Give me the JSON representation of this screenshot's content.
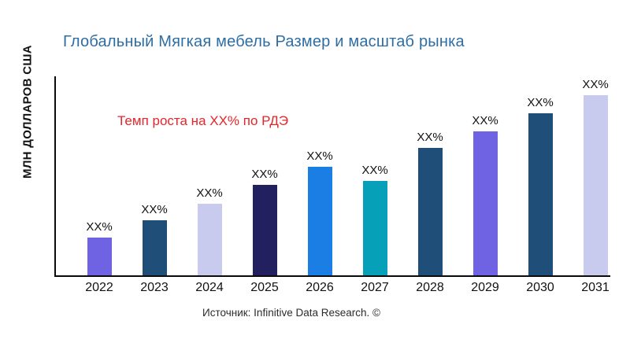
{
  "title": "Глобальный Мягкая мебель Размер и масштаб рынка",
  "annotation": "Темп роста на XX% по РДЭ",
  "y_axis_label": "МЛН ДОЛЛАРОВ США",
  "source": "Источник: Infinitive Data Research. ©",
  "colors": {
    "title": "#2e6da4",
    "annotation": "#e5252a",
    "axis": "#0a0a0a",
    "label_text": "#111111"
  },
  "chart_data": {
    "type": "bar",
    "title": "Глобальный Мягкая мебель Размер и масштаб рынка",
    "xlabel": "",
    "ylabel": "МЛН ДОЛЛАРОВ США",
    "categories": [
      "2022",
      "2023",
      "2024",
      "2025",
      "2026",
      "2027",
      "2028",
      "2029",
      "2030",
      "2031"
    ],
    "bar_labels": [
      "XX%",
      "XX%",
      "XX%",
      "XX%",
      "XX%",
      "XX%",
      "XX%",
      "XX%",
      "XX%",
      "XX%"
    ],
    "values_pct_of_plot_height": [
      19.0,
      27.7,
      36.0,
      45.5,
      54.5,
      47.4,
      64.0,
      72.3,
      81.4,
      90.5
    ],
    "bar_colors": [
      "#6f63e3",
      "#1f4e79",
      "#c9cbee",
      "#232060",
      "#1b7ee5",
      "#06a1b8",
      "#1f4e79",
      "#6f63e3",
      "#1f4e79",
      "#c9cbee"
    ],
    "value_axis_ticks": [],
    "grid": false,
    "legend": false,
    "annotation": "Темп роста на XX% по РДЭ"
  }
}
